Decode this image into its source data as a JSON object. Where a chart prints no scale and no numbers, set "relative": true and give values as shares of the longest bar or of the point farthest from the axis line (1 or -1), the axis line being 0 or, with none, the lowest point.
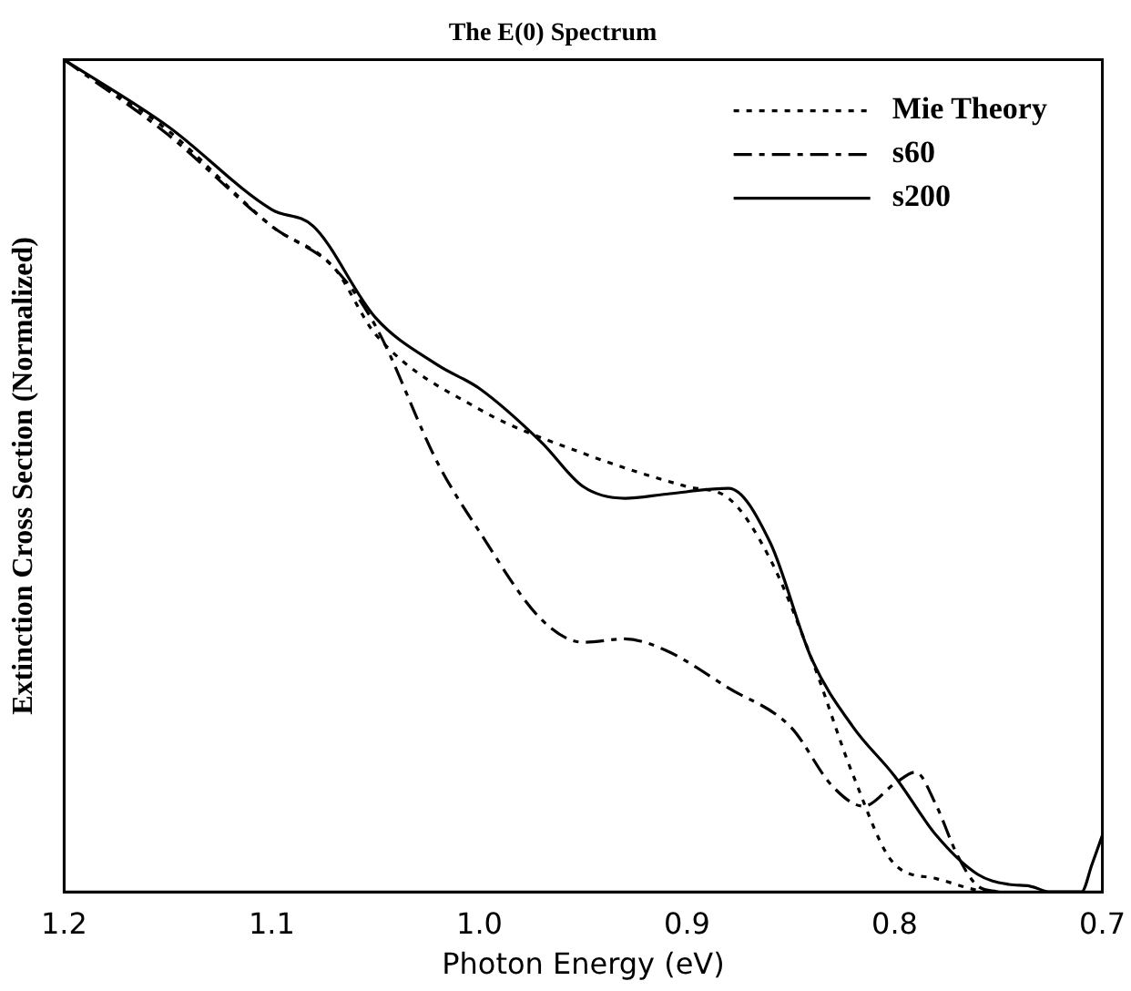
{
  "chart_data": {
    "type": "line",
    "title": "The E(0) Spectrum",
    "xlabel": "Photon Energy (eV)",
    "ylabel": "Extinction Cross Section (Normalized)",
    "relative": true,
    "xlim": [
      1.2,
      0.7
    ],
    "xticks": [
      1.2,
      1.1,
      {
        "value": 1,
        "label": "1.0"
      },
      0.9,
      0.8,
      0.7
    ],
    "legend": "top right",
    "grid": false,
    "marker": "none",
    "series": [
      {
        "name": "Mie Theory",
        "color": "#000000",
        "line_style": "dotted",
        "x": [
          1.2,
          1.15,
          1.1,
          1.07,
          1.05,
          1.0,
          0.95,
          0.9,
          0.88,
          0.86,
          0.84,
          0.82,
          0.8,
          0.78,
          0.76,
          0.75
        ],
        "values": [
          1.0,
          0.915,
          0.8,
          0.75,
          0.67,
          0.58,
          0.527,
          0.487,
          0.473,
          0.4,
          0.28,
          0.14,
          0.033,
          0.016,
          0.002,
          0
        ]
      },
      {
        "name": "s60",
        "color": "#000000",
        "line_style": "dashed",
        "x": [
          1.2,
          1.15,
          1.1,
          1.07,
          1.05,
          1.02,
          1.0,
          0.97,
          0.95,
          0.93,
          0.91,
          0.88,
          0.85,
          0.83,
          0.815,
          0.8,
          0.79,
          0.78,
          0.77,
          0.76,
          0.75
        ],
        "values": [
          1.0,
          0.91,
          0.8,
          0.75,
          0.68,
          0.515,
          0.433,
          0.327,
          0.3,
          0.304,
          0.29,
          0.245,
          0.198,
          0.127,
          0.103,
          0.13,
          0.144,
          0.104,
          0.045,
          0.007,
          0
        ]
      },
      {
        "name": "s200",
        "color": "#000000",
        "line_style": "solid",
        "x": [
          1.2,
          1.15,
          1.1,
          1.08,
          1.05,
          1.02,
          1.0,
          0.97,
          0.95,
          0.93,
          0.91,
          0.88,
          0.86,
          0.84,
          0.82,
          0.8,
          0.78,
          0.76,
          0.745,
          0.735,
          0.725,
          0.71,
          0.705,
          0.7
        ],
        "values": [
          1.0,
          0.92,
          0.82,
          0.8,
          0.69,
          0.633,
          0.605,
          0.54,
          0.487,
          0.473,
          0.478,
          0.485,
          0.42,
          0.28,
          0.198,
          0.139,
          0.068,
          0.021,
          0.009,
          0.007,
          0,
          0,
          0.033,
          0.068
        ]
      }
    ]
  }
}
